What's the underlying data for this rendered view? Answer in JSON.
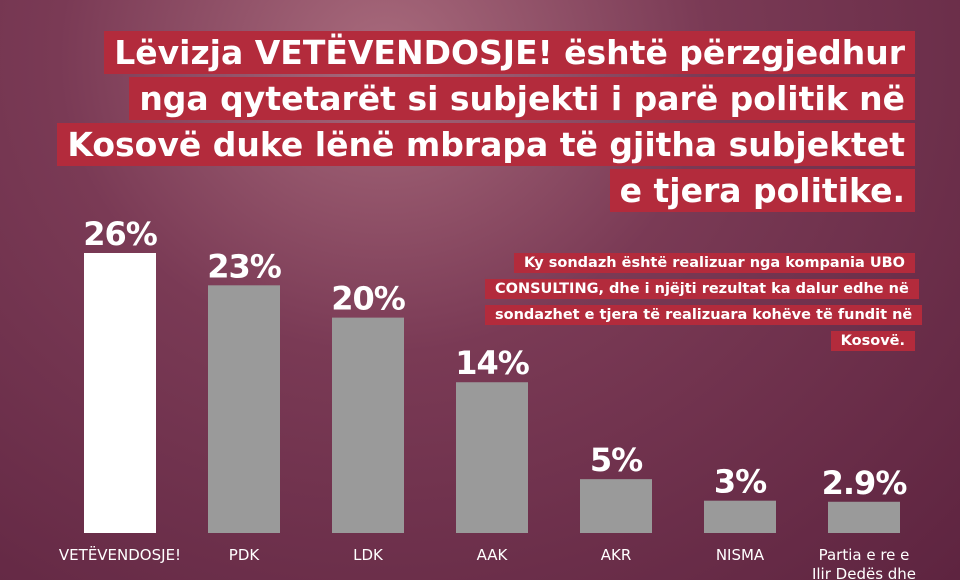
{
  "chart_data": {
    "type": "bar",
    "title": "Lëvizja VETËVENDOSJE! është përzgjedhur nga qytetarët si subjekti i parë politik në Kosovë duke lënë mbrapa të gjitha subjektet e tjera politike.",
    "subtitle": "Ky sondazh është realizuar nga kompania UBO CONSULTING, dhe i njëjti rezultat ka dalur edhe në sondazhet e tjera të realizuara kohëve të fundit në Kosovë.",
    "categories": [
      "VETËVENDOSJE!",
      "PDK",
      "LDK",
      "AAK",
      "AKR",
      "NISMA",
      "Partia e re e Ilir Dedës dhe"
    ],
    "values": [
      26,
      23,
      20,
      14,
      5,
      3,
      2.9
    ],
    "value_labels": [
      "26%",
      "23%",
      "20%",
      "14%",
      "5%",
      "3%",
      "2.9%"
    ],
    "colors": [
      "#ffffff",
      "#9a9a9a",
      "#9a9a9a",
      "#9a9a9a",
      "#9a9a9a",
      "#9a9a9a",
      "#9a9a9a"
    ]
  }
}
